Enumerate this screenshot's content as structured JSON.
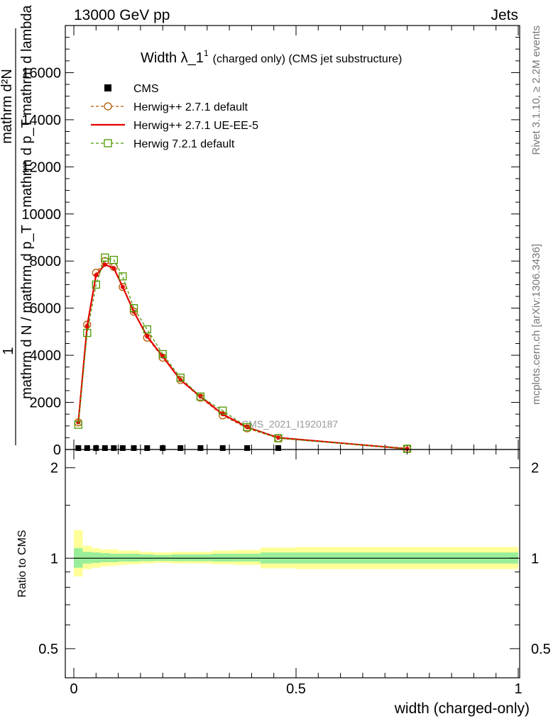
{
  "header": {
    "left": "13000 GeV pp",
    "right": "Jets"
  },
  "side_text": {
    "rivet": "Rivet 3.1.10, ≥ 2.2M events",
    "mcplots": "mcplots.cern.ch [arXiv:1306.3436]"
  },
  "colors": {
    "cms": "#000000",
    "herwigpp_default": "#b35900",
    "herwigpp_ueee5": "#e60000",
    "herwig721": "#4c9900",
    "band_inner": "#99ee99",
    "band_outer": "#ffff99"
  },
  "chart_data": [
    {
      "type": "line",
      "title": "Width λ_1^1 (charged only) (CMS jet substructure)",
      "title_main": "Width λ_1",
      "title_sup": "1",
      "title_rest": "(charged only) (CMS jet substructure)",
      "ylabel_lines": [
        "mathrm d²N",
        "mathrm d p_T mathrm d lambda",
        "1",
        "mathrm d N / mathrm d p_T"
      ],
      "watermark": "CMS_2021_I1920187",
      "xlim": [
        0,
        1
      ],
      "ylim": [
        0,
        18000
      ],
      "y_ticks": [
        0,
        2000,
        4000,
        6000,
        8000,
        10000,
        12000,
        14000,
        16000
      ],
      "y_tick_labels": [
        "0",
        "2000",
        "4000",
        "6000",
        "8000",
        "10000",
        "12000",
        "14000",
        "16000"
      ],
      "legend_position": "top-left",
      "series": [
        {
          "name": "CMS",
          "style": "markers-square",
          "x": [
            0.01,
            0.03,
            0.05,
            0.07,
            0.09,
            0.11,
            0.135,
            0.165,
            0.2,
            0.24,
            0.285,
            0.335,
            0.39,
            0.46
          ],
          "y": [
            0,
            0,
            0,
            0,
            0,
            0,
            0,
            0,
            0,
            0,
            0,
            0,
            0,
            0
          ]
        },
        {
          "name": "Herwig++ 2.7.1 default",
          "style": "dashed-circle",
          "x": [
            0.01,
            0.03,
            0.05,
            0.07,
            0.09,
            0.11,
            0.135,
            0.165,
            0.2,
            0.24,
            0.285,
            0.335,
            0.39,
            0.46,
            0.75
          ],
          "y": [
            1150,
            5300,
            7500,
            8000,
            7750,
            6900,
            5850,
            4750,
            3900,
            2950,
            2200,
            1450,
            900,
            480,
            30
          ]
        },
        {
          "name": "Herwig++ 2.7.1 UE-EE-5",
          "style": "solid",
          "x": [
            0.01,
            0.03,
            0.05,
            0.07,
            0.09,
            0.11,
            0.135,
            0.165,
            0.2,
            0.24,
            0.285,
            0.335,
            0.39,
            0.46,
            0.75
          ],
          "y": [
            1150,
            5250,
            7400,
            7850,
            7700,
            6900,
            5850,
            4800,
            3950,
            2950,
            2250,
            1500,
            950,
            500,
            30
          ]
        },
        {
          "name": "Herwig 7.2.1 default",
          "style": "dashed-square",
          "x": [
            0.01,
            0.03,
            0.05,
            0.07,
            0.09,
            0.11,
            0.135,
            0.165,
            0.2,
            0.24,
            0.285,
            0.335,
            0.39,
            0.46,
            0.75
          ],
          "y": [
            1050,
            4950,
            7000,
            8150,
            8050,
            7350,
            6000,
            5100,
            4050,
            3050,
            2250,
            1650,
            950,
            480,
            30
          ]
        }
      ]
    },
    {
      "type": "area",
      "xlabel": "width (charged-only)",
      "ylabel": "Ratio to CMS",
      "xlim": [
        0,
        1
      ],
      "ylim": [
        0.4,
        2.3
      ],
      "x_ticks": [
        0,
        0.5,
        1
      ],
      "x_tick_labels": [
        "0",
        "0.5",
        "1"
      ],
      "y_ticks": [
        0.5,
        1,
        2
      ],
      "y_tick_labels": [
        "0.5",
        "1",
        "2"
      ],
      "bins": [
        0,
        0.02,
        0.04,
        0.06,
        0.08,
        0.1,
        0.12,
        0.15,
        0.18,
        0.22,
        0.26,
        0.31,
        0.36,
        0.42,
        0.5,
        1.0
      ],
      "inner_band": [
        [
          0.93,
          1.08
        ],
        [
          0.96,
          1.05
        ],
        [
          0.965,
          1.045
        ],
        [
          0.97,
          1.04
        ],
        [
          0.97,
          1.035
        ],
        [
          0.975,
          1.035
        ],
        [
          0.975,
          1.035
        ],
        [
          0.978,
          1.03
        ],
        [
          0.98,
          1.025
        ],
        [
          0.978,
          1.03
        ],
        [
          0.978,
          1.03
        ],
        [
          0.975,
          1.035
        ],
        [
          0.975,
          1.035
        ],
        [
          0.96,
          1.045
        ],
        [
          0.96,
          1.045
        ]
      ],
      "outer_band": [
        [
          0.87,
          1.24
        ],
        [
          0.92,
          1.1
        ],
        [
          0.93,
          1.08
        ],
        [
          0.94,
          1.07
        ],
        [
          0.945,
          1.07
        ],
        [
          0.95,
          1.06
        ],
        [
          0.955,
          1.06
        ],
        [
          0.96,
          1.05
        ],
        [
          0.965,
          1.045
        ],
        [
          0.96,
          1.05
        ],
        [
          0.96,
          1.05
        ],
        [
          0.955,
          1.06
        ],
        [
          0.95,
          1.065
        ],
        [
          0.925,
          1.085
        ],
        [
          0.92,
          1.09
        ]
      ],
      "series": [
        {
          "name": "CMS",
          "x": [
            0,
            1
          ],
          "y": [
            1,
            1
          ]
        }
      ]
    }
  ]
}
